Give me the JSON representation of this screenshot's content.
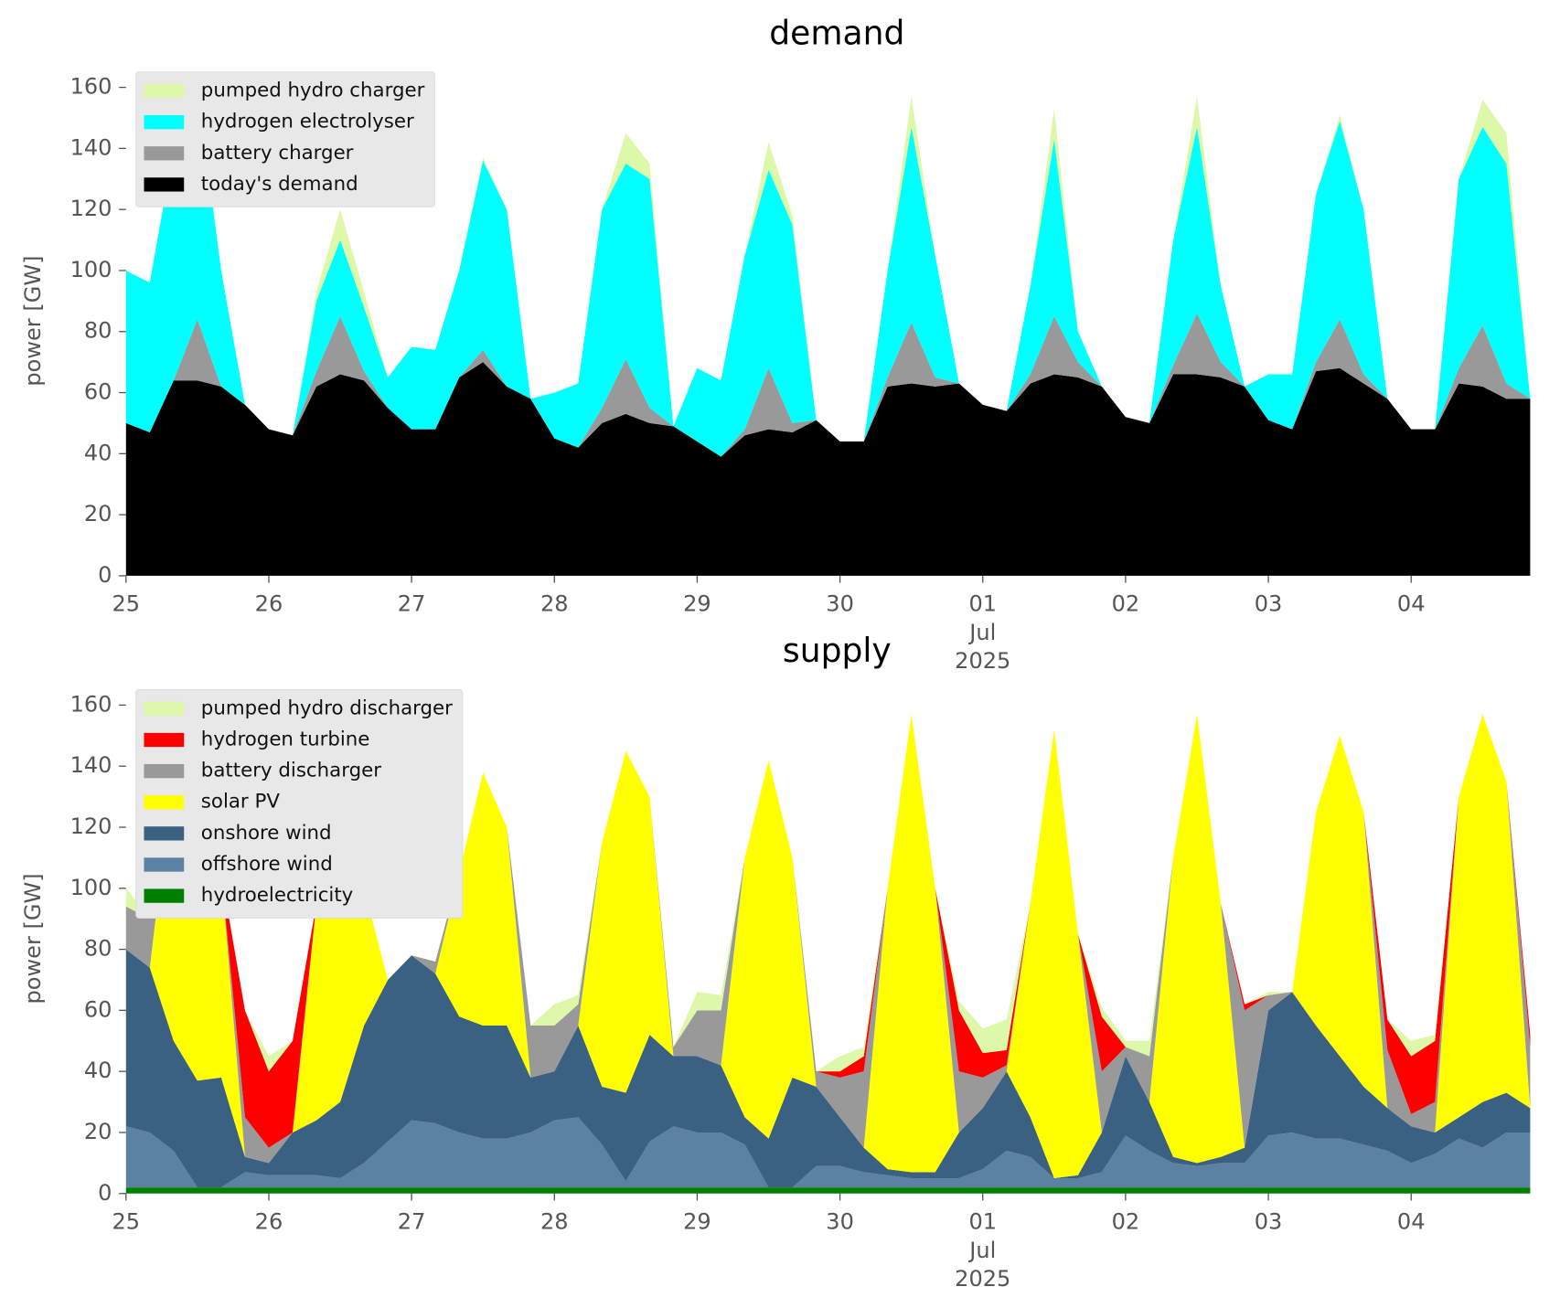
{
  "chart_data": [
    {
      "type": "area",
      "stacked": true,
      "title": "demand",
      "ylabel": "power [GW]",
      "legend": "upper left",
      "x": [
        "2025-06-25T00:00",
        "2025-06-25T04:00",
        "2025-06-25T08:00",
        "2025-06-25T12:00",
        "2025-06-25T16:00",
        "2025-06-25T20:00",
        "2025-06-26T00:00",
        "2025-06-26T04:00",
        "2025-06-26T08:00",
        "2025-06-26T12:00",
        "2025-06-26T16:00",
        "2025-06-26T20:00",
        "2025-06-27T00:00",
        "2025-06-27T04:00",
        "2025-06-27T08:00",
        "2025-06-27T12:00",
        "2025-06-27T16:00",
        "2025-06-27T20:00",
        "2025-06-28T00:00",
        "2025-06-28T04:00",
        "2025-06-28T08:00",
        "2025-06-28T12:00",
        "2025-06-28T16:00",
        "2025-06-28T20:00",
        "2025-06-29T00:00",
        "2025-06-29T04:00",
        "2025-06-29T08:00",
        "2025-06-29T12:00",
        "2025-06-29T16:00",
        "2025-06-29T20:00",
        "2025-06-30T00:00",
        "2025-06-30T04:00",
        "2025-06-30T08:00",
        "2025-06-30T12:00",
        "2025-06-30T16:00",
        "2025-06-30T20:00",
        "2025-07-01T00:00",
        "2025-07-01T04:00",
        "2025-07-01T08:00",
        "2025-07-01T12:00",
        "2025-07-01T16:00",
        "2025-07-01T20:00",
        "2025-07-02T00:00",
        "2025-07-02T04:00",
        "2025-07-02T08:00",
        "2025-07-02T12:00",
        "2025-07-02T16:00",
        "2025-07-02T20:00",
        "2025-07-03T00:00",
        "2025-07-03T04:00",
        "2025-07-03T08:00",
        "2025-07-03T12:00",
        "2025-07-03T16:00",
        "2025-07-03T20:00",
        "2025-07-04T00:00",
        "2025-07-04T04:00",
        "2025-07-04T08:00",
        "2025-07-04T12:00",
        "2025-07-04T16:00",
        "2025-07-04T20:00"
      ],
      "series": [
        {
          "name": "pumped hydro charger",
          "color": "#dcf8a8",
          "values": [
            0,
            0,
            0,
            2,
            0,
            0,
            0,
            0,
            3,
            10,
            5,
            0,
            0,
            0,
            0,
            1,
            0,
            0,
            0,
            0,
            0,
            10,
            5,
            0,
            0,
            0,
            0,
            9,
            3,
            0,
            0,
            0,
            0,
            10,
            0,
            0,
            0,
            0,
            0,
            10,
            0,
            0,
            0,
            0,
            0,
            10,
            0,
            0,
            0,
            0,
            0,
            2,
            0,
            0,
            0,
            0,
            0,
            9,
            10,
            0
          ]
        },
        {
          "name": "hydrogen electrolyser",
          "color": "#00ffff",
          "values": [
            50,
            49,
            76,
            76,
            38,
            0,
            0,
            0,
            23,
            25,
            21,
            10,
            27,
            26,
            35,
            62,
            58,
            0,
            15,
            21,
            65,
            64,
            75,
            0,
            24,
            25,
            57,
            65,
            65,
            0,
            0,
            0,
            35,
            64,
            40,
            0,
            0,
            0,
            29,
            58,
            10,
            0,
            0,
            0,
            41,
            61,
            25,
            0,
            15,
            18,
            55,
            65,
            54,
            0,
            0,
            0,
            62,
            65,
            72,
            0
          ]
        },
        {
          "name": "battery charger",
          "color": "#999999",
          "values": [
            0,
            0,
            0,
            20,
            0,
            0,
            0,
            0,
            5,
            19,
            3,
            0,
            0,
            0,
            0,
            4,
            0,
            0,
            0,
            0,
            5,
            18,
            5,
            0,
            0,
            0,
            2,
            20,
            3,
            0,
            0,
            0,
            3,
            20,
            3,
            0,
            0,
            0,
            3,
            19,
            5,
            0,
            0,
            0,
            3,
            20,
            5,
            0,
            0,
            0,
            3,
            16,
            3,
            0,
            0,
            0,
            5,
            20,
            5,
            0
          ]
        },
        {
          "name": "today's demand",
          "color": "#000000",
          "values": [
            50,
            47,
            64,
            64,
            62,
            56,
            48,
            46,
            62,
            66,
            64,
            55,
            48,
            48,
            65,
            70,
            62,
            58,
            45,
            42,
            50,
            53,
            50,
            49,
            44,
            39,
            46,
            48,
            47,
            51,
            44,
            44,
            62,
            63,
            62,
            63,
            56,
            54,
            63,
            66,
            65,
            62,
            52,
            50,
            66,
            66,
            65,
            62,
            51,
            48,
            67,
            68,
            63,
            58,
            48,
            48,
            63,
            62,
            58,
            58
          ]
        }
      ],
      "xlim": [
        "2025-06-25T00:00",
        "2025-07-04T23:00"
      ],
      "xticks": [
        {
          "value": "2025-06-25T00:00",
          "label": "25"
        },
        {
          "value": "2025-06-26T00:00",
          "label": "26"
        },
        {
          "value": "2025-06-27T00:00",
          "label": "27"
        },
        {
          "value": "2025-06-28T00:00",
          "label": "28"
        },
        {
          "value": "2025-06-29T00:00",
          "label": "29"
        },
        {
          "value": "2025-06-30T00:00",
          "label": "30"
        },
        {
          "value": "2025-07-01T00:00",
          "label": "01\nJul\n2025"
        },
        {
          "value": "2025-07-02T00:00",
          "label": "02"
        },
        {
          "value": "2025-07-03T00:00",
          "label": "03"
        },
        {
          "value": "2025-07-04T00:00",
          "label": "04"
        }
      ],
      "ylim": [
        0,
        167
      ],
      "yticks": [
        0,
        20,
        40,
        60,
        80,
        100,
        120,
        140,
        160
      ]
    },
    {
      "type": "area",
      "stacked": true,
      "title": "supply",
      "ylabel": "power [GW]",
      "legend": "upper left",
      "x": [
        "2025-06-25T00:00",
        "2025-06-25T04:00",
        "2025-06-25T08:00",
        "2025-06-25T12:00",
        "2025-06-25T16:00",
        "2025-06-25T20:00",
        "2025-06-26T00:00",
        "2025-06-26T04:00",
        "2025-06-26T08:00",
        "2025-06-26T12:00",
        "2025-06-26T16:00",
        "2025-06-26T20:00",
        "2025-06-27T00:00",
        "2025-06-27T04:00",
        "2025-06-27T08:00",
        "2025-06-27T12:00",
        "2025-06-27T16:00",
        "2025-06-27T20:00",
        "2025-06-28T00:00",
        "2025-06-28T04:00",
        "2025-06-28T08:00",
        "2025-06-28T12:00",
        "2025-06-28T16:00",
        "2025-06-28T20:00",
        "2025-06-29T00:00",
        "2025-06-29T04:00",
        "2025-06-29T08:00",
        "2025-06-29T12:00",
        "2025-06-29T16:00",
        "2025-06-29T20:00",
        "2025-06-30T00:00",
        "2025-06-30T04:00",
        "2025-06-30T08:00",
        "2025-06-30T12:00",
        "2025-06-30T16:00",
        "2025-06-30T20:00",
        "2025-07-01T00:00",
        "2025-07-01T04:00",
        "2025-07-01T08:00",
        "2025-07-01T12:00",
        "2025-07-01T16:00",
        "2025-07-01T20:00",
        "2025-07-02T00:00",
        "2025-07-02T04:00",
        "2025-07-02T08:00",
        "2025-07-02T12:00",
        "2025-07-02T16:00",
        "2025-07-02T20:00",
        "2025-07-03T00:00",
        "2025-07-03T04:00",
        "2025-07-03T08:00",
        "2025-07-03T12:00",
        "2025-07-03T16:00",
        "2025-07-03T20:00",
        "2025-07-04T00:00",
        "2025-07-04T04:00",
        "2025-07-04T08:00",
        "2025-07-04T12:00",
        "2025-07-04T16:00",
        "2025-07-04T20:00"
      ],
      "series": [
        {
          "name": "pumped hydro discharger",
          "color": "#dcf8a8",
          "values": [
            6,
            0,
            0,
            0,
            0,
            0,
            5,
            0,
            0,
            0,
            0,
            0,
            0,
            0,
            0,
            0,
            0,
            0,
            7,
            3,
            0,
            0,
            0,
            0,
            6,
            5,
            0,
            0,
            0,
            0,
            5,
            3,
            0,
            0,
            0,
            3,
            8,
            10,
            0,
            0,
            0,
            3,
            2,
            5,
            0,
            0,
            0,
            0,
            1,
            0,
            0,
            0,
            0,
            0,
            5,
            2,
            0,
            0,
            0,
            0
          ]
        },
        {
          "name": "hydrogen turbine",
          "color": "#ff0000",
          "values": [
            0,
            0,
            0,
            0,
            0,
            35,
            25,
            30,
            0,
            0,
            0,
            0,
            0,
            0,
            0,
            0,
            0,
            0,
            0,
            0,
            0,
            0,
            0,
            0,
            0,
            0,
            0,
            0,
            0,
            0,
            2,
            5,
            0,
            0,
            0,
            20,
            8,
            5,
            0,
            0,
            0,
            18,
            0,
            0,
            0,
            0,
            0,
            2,
            0,
            0,
            0,
            0,
            0,
            10,
            19,
            20,
            0,
            0,
            0,
            4
          ]
        },
        {
          "name": "battery discharger",
          "color": "#999999",
          "values": [
            14,
            16,
            0,
            0,
            0,
            13,
            5,
            0,
            0,
            0,
            0,
            0,
            0,
            4,
            0,
            0,
            0,
            17,
            15,
            7,
            0,
            0,
            0,
            3,
            15,
            18,
            0,
            0,
            0,
            5,
            13,
            25,
            0,
            0,
            0,
            20,
            10,
            2,
            0,
            0,
            0,
            20,
            3,
            15,
            0,
            0,
            0,
            45,
            5,
            0,
            0,
            0,
            0,
            19,
            4,
            10,
            0,
            0,
            0,
            20
          ]
        },
        {
          "name": "solar PV",
          "color": "#ffff00",
          "values": [
            0,
            0,
            90,
            123,
            67,
            0,
            0,
            0,
            71,
            90,
            45,
            0,
            0,
            0,
            47,
            83,
            65,
            0,
            0,
            0,
            80,
            112,
            78,
            0,
            0,
            0,
            85,
            124,
            72,
            0,
            0,
            0,
            92,
            150,
            93,
            0,
            0,
            0,
            70,
            147,
            79,
            0,
            0,
            0,
            98,
            147,
            83,
            0,
            0,
            0,
            70,
            105,
            90,
            0,
            0,
            0,
            105,
            127,
            102,
            0
          ]
        },
        {
          "name": "onshore wind",
          "color": "#3b6182",
          "values": [
            58,
            54,
            36,
            35,
            36,
            5,
            4,
            14,
            18,
            25,
            45,
            53,
            54,
            49,
            38,
            37,
            37,
            18,
            16,
            30,
            19,
            29,
            35,
            23,
            25,
            22,
            9,
            16,
            36,
            26,
            16,
            8,
            2,
            2,
            2,
            15,
            20,
            26,
            13,
            0,
            1,
            13,
            26,
            16,
            2,
            1,
            2,
            5,
            41,
            46,
            37,
            27,
            19,
            14,
            12,
            7,
            7,
            15,
            13,
            8
          ]
        },
        {
          "name": "offshore wind",
          "color": "#5b81a3",
          "values": [
            20,
            18,
            12,
            0,
            0,
            5,
            4,
            4,
            4,
            3,
            8,
            15,
            22,
            21,
            18,
            16,
            16,
            18,
            22,
            23,
            14,
            2,
            15,
            20,
            18,
            18,
            14,
            0,
            0,
            7,
            7,
            5,
            4,
            3,
            3,
            3,
            6,
            12,
            10,
            3,
            3,
            5,
            17,
            12,
            8,
            7,
            8,
            8,
            17,
            18,
            16,
            16,
            14,
            12,
            8,
            11,
            16,
            13,
            18,
            18
          ]
        },
        {
          "name": "hydroelectricity",
          "color": "#008000",
          "values": [
            2,
            2,
            2,
            2,
            2,
            2,
            2,
            2,
            2,
            2,
            2,
            2,
            2,
            2,
            2,
            2,
            2,
            2,
            2,
            2,
            2,
            2,
            2,
            2,
            2,
            2,
            2,
            2,
            2,
            2,
            2,
            2,
            2,
            2,
            2,
            2,
            2,
            2,
            2,
            2,
            2,
            2,
            2,
            2,
            2,
            2,
            2,
            2,
            2,
            2,
            2,
            2,
            2,
            2,
            2,
            2,
            2,
            2,
            2,
            2
          ]
        }
      ],
      "xlim": [
        "2025-06-25T00:00",
        "2025-07-04T23:00"
      ],
      "xticks": [
        {
          "value": "2025-06-25T00:00",
          "label": "25"
        },
        {
          "value": "2025-06-26T00:00",
          "label": "26"
        },
        {
          "value": "2025-06-27T00:00",
          "label": "27"
        },
        {
          "value": "2025-06-28T00:00",
          "label": "28"
        },
        {
          "value": "2025-06-29T00:00",
          "label": "29"
        },
        {
          "value": "2025-06-30T00:00",
          "label": "30"
        },
        {
          "value": "2025-07-01T00:00",
          "label": "01\nJul\n2025"
        },
        {
          "value": "2025-07-02T00:00",
          "label": "02"
        },
        {
          "value": "2025-07-03T00:00",
          "label": "03"
        },
        {
          "value": "2025-07-04T00:00",
          "label": "04"
        }
      ],
      "ylim": [
        0,
        167
      ],
      "yticks": [
        0,
        20,
        40,
        60,
        80,
        100,
        120,
        140,
        160
      ]
    }
  ]
}
